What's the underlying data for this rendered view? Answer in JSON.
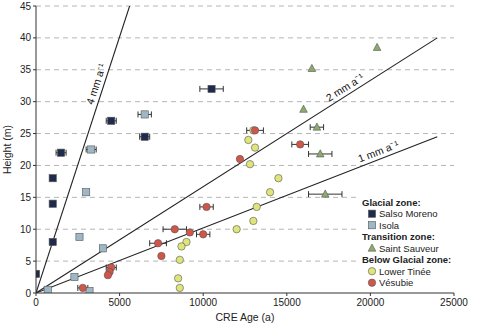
{
  "chart_data": {
    "type": "scatter",
    "x_label": "CRE Age (a)",
    "y_label": "Height (m)",
    "xlim": [
      0,
      25000
    ],
    "ylim": [
      0,
      45
    ],
    "xticks": [
      0,
      5000,
      10000,
      15000,
      20000,
      25000
    ],
    "yticks": [
      0,
      5,
      10,
      15,
      20,
      25,
      30,
      35,
      40,
      45
    ],
    "grid": true,
    "legend": "lower right",
    "legend_groups": [
      "Glacial zone:",
      "Transition zone:",
      "Below Glacial zone:"
    ],
    "series": [
      {
        "name": "Salso Moreno",
        "group": 0,
        "color": "#1f2b4d",
        "marker": "square",
        "x": [
          0,
          1000,
          1000,
          1000,
          1500,
          4500,
          6500,
          10500
        ],
        "values": [
          3,
          8,
          14,
          18,
          22,
          27,
          24.5,
          32
        ],
        "x_errors": [
          null,
          null,
          null,
          null,
          300,
          300,
          300,
          700
        ]
      },
      {
        "name": "Isola",
        "group": 0,
        "color": "#9db7c6",
        "marker": "square",
        "x": [
          6500,
          3300,
          3000,
          2600,
          4000,
          2300,
          700,
          3200
        ],
        "values": [
          28,
          22.5,
          15.8,
          8.8,
          7,
          2.5,
          0.5,
          0.3
        ],
        "x_errors": [
          400,
          300,
          null,
          null,
          null,
          null,
          null,
          null
        ]
      },
      {
        "name": "Saint Sauveur",
        "group": 1,
        "color": "#8cab6c",
        "marker": "triangle",
        "x": [
          20400,
          16500,
          16000,
          16800,
          17000,
          17300
        ],
        "values": [
          38.5,
          35.2,
          28.8,
          26,
          21.8,
          15.5
        ],
        "x_errors": [
          null,
          null,
          null,
          400,
          700,
          1000
        ]
      },
      {
        "name": "Lower Tinée",
        "group": 2,
        "color": "#dfe57a",
        "marker": "circle",
        "x": [
          13000,
          12700,
          13100,
          12800,
          14500,
          14000,
          13200,
          13000,
          12000,
          9000,
          8700,
          8600,
          8500,
          8600
        ],
        "values": [
          25.5,
          24,
          22.8,
          20.2,
          18,
          15.8,
          13.5,
          11.3,
          10,
          8,
          7.3,
          5.2,
          2.3,
          0.8
        ],
        "x_errors": [
          null,
          null,
          null,
          null,
          null,
          null,
          null,
          null,
          null,
          null,
          null,
          null,
          null,
          null
        ]
      },
      {
        "name": "Vésubie",
        "group": 2,
        "color": "#d0564a",
        "marker": "circle",
        "x": [
          13100,
          15800,
          12200,
          10200,
          10000,
          8300,
          7300,
          7500,
          4500,
          4400,
          4300,
          2800,
          9200
        ],
        "values": [
          25.5,
          23.3,
          21,
          13.5,
          9.2,
          10,
          7.8,
          5.8,
          4,
          3.3,
          2.8,
          0.8,
          9.5
        ],
        "x_errors": [
          500,
          500,
          null,
          400,
          400,
          700,
          500,
          null,
          300,
          null,
          null,
          300,
          null
        ]
      }
    ],
    "reference_lines": [
      {
        "label": "4 mm a⁻¹",
        "x": [
          0,
          5600
        ],
        "values": [
          0,
          45
        ]
      },
      {
        "label": "2 mm a⁻¹",
        "x": [
          0,
          24000
        ],
        "values": [
          0,
          40
        ]
      },
      {
        "label": "1 mm a⁻¹",
        "x": [
          0,
          24000
        ],
        "values": [
          0,
          24.5
        ]
      }
    ]
  }
}
